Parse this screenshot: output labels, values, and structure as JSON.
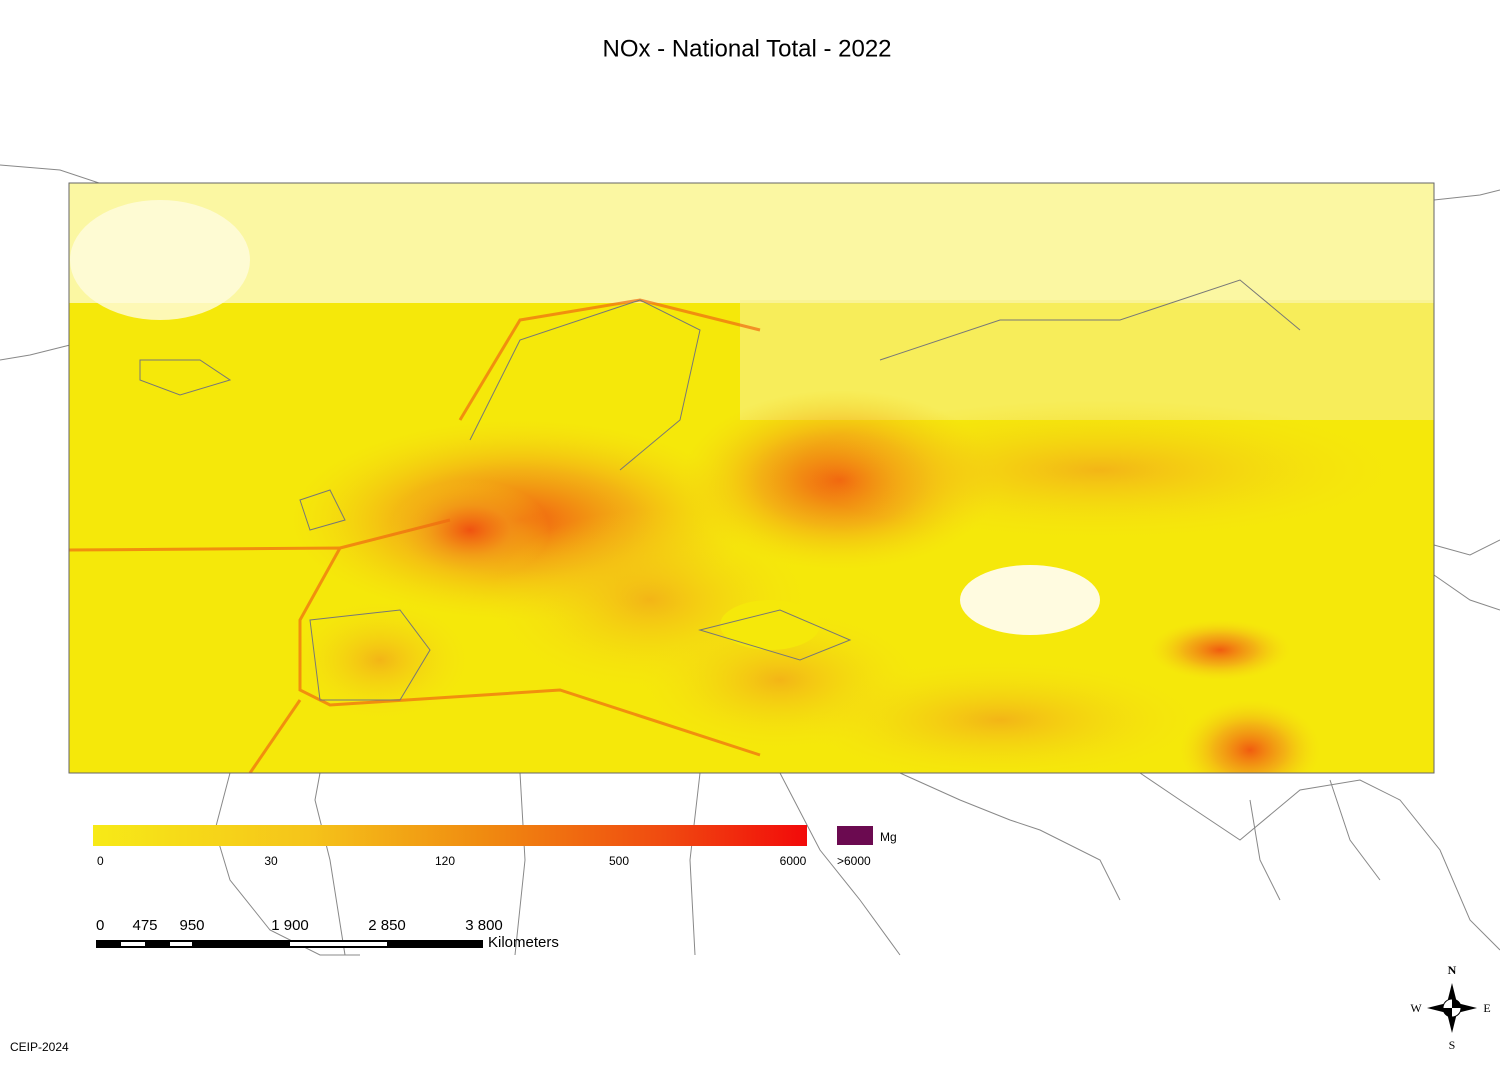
{
  "header": {
    "title": "NOx - National Total - 2022"
  },
  "legend": {
    "ticks": [
      "0",
      "30",
      "120",
      "500",
      "6000"
    ],
    "overflow_label": ">6000",
    "unit": "Mg"
  },
  "scale_bar": {
    "labels": [
      "0",
      "475",
      "950",
      "1 900",
      "2 850",
      "3 800"
    ],
    "unit": "Kilometers"
  },
  "compass": {
    "north": "N",
    "south": "S",
    "east": "E",
    "west": "W"
  },
  "footer": {
    "credit": "CEIP-2024"
  }
}
